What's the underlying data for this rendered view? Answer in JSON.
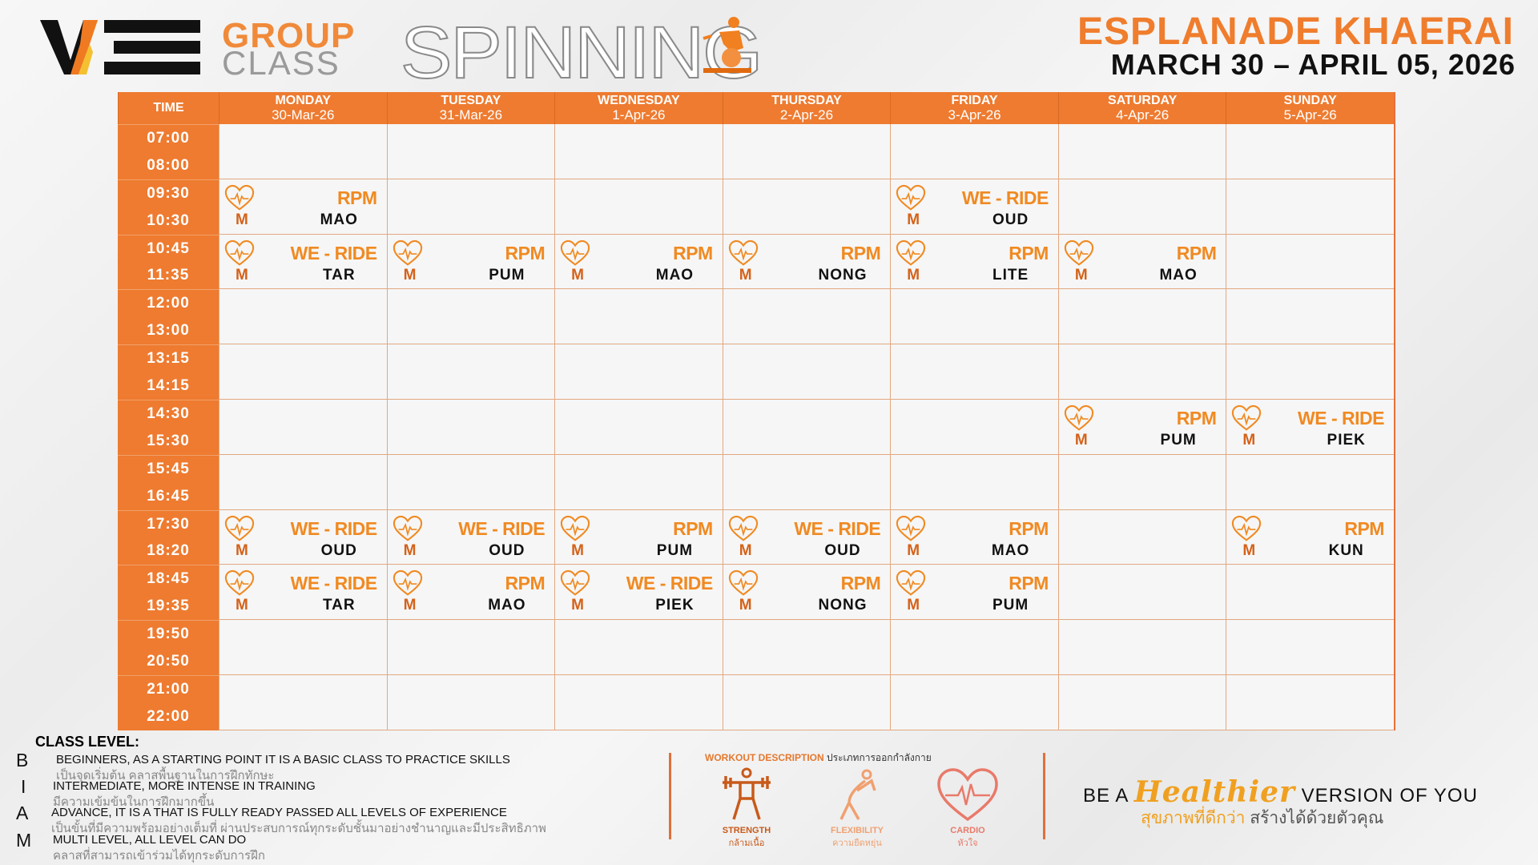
{
  "header": {
    "logo_text": "WE",
    "group": "GROUP",
    "class": "CLASS",
    "spinning": "SPINNING",
    "venue": "ESPLANADE KHAERAI",
    "date_range": "MARCH 30 – APRIL 05, 2026"
  },
  "table": {
    "time_header": "TIME",
    "days": [
      {
        "name": "MONDAY",
        "date": "30-Mar-26"
      },
      {
        "name": "TUESDAY",
        "date": "31-Mar-26"
      },
      {
        "name": "WEDNESDAY",
        "date": "1-Apr-26"
      },
      {
        "name": "THURSDAY",
        "date": "2-Apr-26"
      },
      {
        "name": "FRIDAY",
        "date": "3-Apr-26"
      },
      {
        "name": "SATURDAY",
        "date": "4-Apr-26"
      },
      {
        "name": "SUNDAY",
        "date": "5-Apr-26"
      }
    ],
    "rows": [
      {
        "start": "07:00",
        "end": "08:00",
        "classes": [
          null,
          null,
          null,
          null,
          null,
          null,
          null
        ]
      },
      {
        "start": "09:30",
        "end": "10:30",
        "classes": [
          {
            "class": "RPM",
            "trainer": "MAO",
            "level": "M"
          },
          null,
          null,
          null,
          {
            "class": "WE - RIDE",
            "trainer": "OUD",
            "level": "M"
          },
          null,
          null
        ]
      },
      {
        "start": "10:45",
        "end": "11:35",
        "classes": [
          {
            "class": "WE - RIDE",
            "trainer": "TAR",
            "level": "M"
          },
          {
            "class": "RPM",
            "trainer": "PUM",
            "level": "M"
          },
          {
            "class": "RPM",
            "trainer": "MAO",
            "level": "M"
          },
          {
            "class": "RPM",
            "trainer": "NONG",
            "level": "M"
          },
          {
            "class": "RPM",
            "trainer": "LITE",
            "level": "M"
          },
          {
            "class": "RPM",
            "trainer": "MAO",
            "level": "M"
          },
          null
        ]
      },
      {
        "start": "12:00",
        "end": "13:00",
        "classes": [
          null,
          null,
          null,
          null,
          null,
          null,
          null
        ]
      },
      {
        "start": "13:15",
        "end": "14:15",
        "classes": [
          null,
          null,
          null,
          null,
          null,
          null,
          null
        ]
      },
      {
        "start": "14:30",
        "end": "15:30",
        "classes": [
          null,
          null,
          null,
          null,
          null,
          {
            "class": "RPM",
            "trainer": "PUM",
            "level": "M"
          },
          {
            "class": "WE - RIDE",
            "trainer": "PIEK",
            "level": "M"
          }
        ]
      },
      {
        "start": "15:45",
        "end": "16:45",
        "classes": [
          null,
          null,
          null,
          null,
          null,
          null,
          null
        ]
      },
      {
        "start": "17:30",
        "end": "18:20",
        "classes": [
          {
            "class": "WE - RIDE",
            "trainer": "OUD",
            "level": "M"
          },
          {
            "class": "WE - RIDE",
            "trainer": "OUD",
            "level": "M"
          },
          {
            "class": "RPM",
            "trainer": "PUM",
            "level": "M"
          },
          {
            "class": "WE - RIDE",
            "trainer": "OUD",
            "level": "M"
          },
          {
            "class": "RPM",
            "trainer": "MAO",
            "level": "M"
          },
          null,
          {
            "class": "RPM",
            "trainer": "KUN",
            "level": "M"
          }
        ]
      },
      {
        "start": "18:45",
        "end": "19:35",
        "classes": [
          {
            "class": "WE - RIDE",
            "trainer": "TAR",
            "level": "M"
          },
          {
            "class": "RPM",
            "trainer": "MAO",
            "level": "M"
          },
          {
            "class": "WE - RIDE",
            "trainer": "PIEK",
            "level": "M"
          },
          {
            "class": "RPM",
            "trainer": "NONG",
            "level": "M"
          },
          {
            "class": "RPM",
            "trainer": "PUM",
            "level": "M"
          },
          null,
          null
        ]
      },
      {
        "start": "19:50",
        "end": "20:50",
        "classes": [
          null,
          null,
          null,
          null,
          null,
          null,
          null
        ]
      },
      {
        "start": "21:00",
        "end": "22:00",
        "classes": [
          null,
          null,
          null,
          null,
          null,
          null,
          null
        ]
      }
    ]
  },
  "class_level": {
    "title": "CLASS LEVEL:",
    "levels": [
      {
        "letter": "B",
        "en": "BEGINNERS, AS A STARTING POINT IT IS A BASIC CLASS TO PRACTICE SKILLS",
        "th": "เป็นจุดเริ่มต้น คลาสพื้นฐานในการฝึกทักษะ"
      },
      {
        "letter": "I",
        "en": "INTERMEDIATE, MORE INTENSE IN TRAINING",
        "th": "มีความเข้มข้นในการฝึกมากขึ้น"
      },
      {
        "letter": "A",
        "en": "ADVANCE, IT IS A THAT IS FULLY READY PASSED ALL LEVELS OF EXPERIENCE",
        "th": "เป็นขั้นที่มีความพร้อมอย่างเต็มที่ ผ่านประสบการณ์ทุกระดับชั้นมาอย่างชำนาญและมีประสิทธิภาพ"
      },
      {
        "letter": "M",
        "en": "MULTI LEVEL, ALL LEVEL CAN DO",
        "th": "คลาสที่สามารถเข้าร่วมได้ทุกระดับการฝึก"
      }
    ]
  },
  "workout": {
    "title_en": "WORKOUT DESCRIPTION",
    "title_th": "ประเภทการออกกำลังกาย",
    "items": [
      {
        "en": "STRENGTH",
        "th": "กล้ามเนื้อ",
        "icon": "weightlifter-icon",
        "color": "#c85a1a"
      },
      {
        "en": "FLEXIBILITY",
        "th": "ความยืดหยุ่น",
        "icon": "stretch-icon",
        "color": "#f0a070"
      },
      {
        "en": "CARDIO",
        "th": "หัวใจ",
        "icon": "heart-pulse-icon",
        "color": "#e87a6a"
      }
    ]
  },
  "slogan": {
    "pre": "BE A",
    "highlight": "Healthier",
    "post": "VERSION OF YOU",
    "th_highlight": "สุขภาพที่ดีกว่า",
    "th_rest": "สร้างได้ด้วยตัวคุณ"
  },
  "colors": {
    "accent": "#ee7b30",
    "class_name": "#f08a22"
  }
}
